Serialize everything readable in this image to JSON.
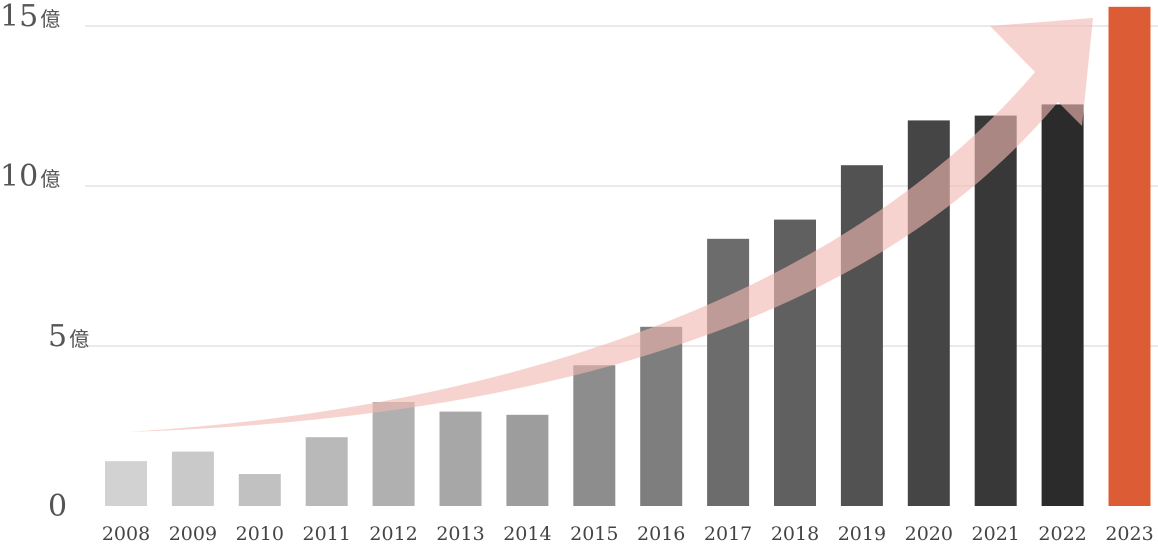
{
  "chart_data": {
    "type": "bar",
    "title": "",
    "xlabel": "",
    "ylabel": "",
    "categories": [
      "2008",
      "2009",
      "2010",
      "2011",
      "2012",
      "2013",
      "2014",
      "2015",
      "2016",
      "2017",
      "2018",
      "2019",
      "2020",
      "2021",
      "2022",
      "2023"
    ],
    "values": [
      1.4,
      1.7,
      1.0,
      2.15,
      3.25,
      2.95,
      2.85,
      4.4,
      5.6,
      8.35,
      8.95,
      10.65,
      12.05,
      12.2,
      12.55,
      15.6
    ],
    "ylim": [
      0,
      15.6
    ],
    "yticks": [
      {
        "value": 0,
        "number": "0",
        "unit": ""
      },
      {
        "value": 5,
        "number": "5",
        "unit": "億"
      },
      {
        "value": 10,
        "number": "10",
        "unit": "億"
      },
      {
        "value": 15,
        "number": "15",
        "unit": "億"
      }
    ],
    "grid": true,
    "bar_colors": [
      "#d2d2d2",
      "#c9c9c9",
      "#c1c1c1",
      "#b9b9b9",
      "#b0b0b0",
      "#a7a7a7",
      "#9d9d9d",
      "#8d8d8d",
      "#7e7e7e",
      "#6c6c6c",
      "#606060",
      "#525252",
      "#454545",
      "#383838",
      "#2b2b2b",
      "#dc5d35"
    ],
    "highlight_color": "#dc5d35",
    "trend_arrow_color": "#f2b8b2"
  }
}
